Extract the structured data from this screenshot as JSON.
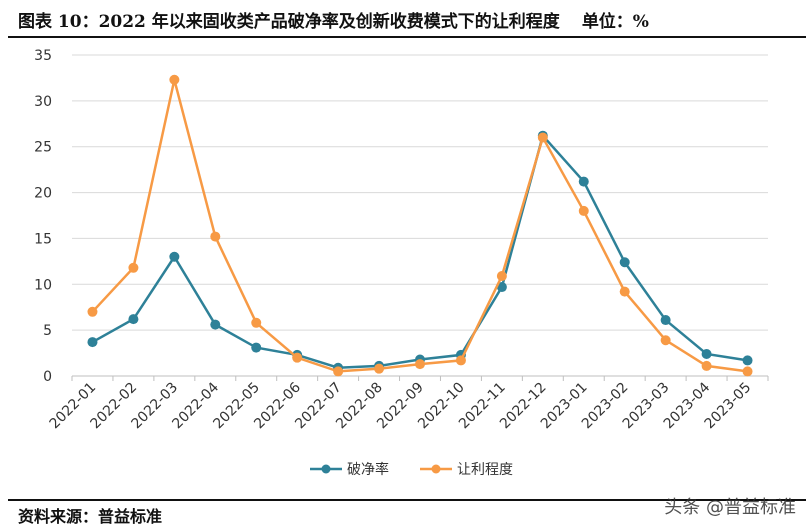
{
  "header": {
    "title": "图表 10：2022 年以来固收类产品破净率及创新收费模式下的让利程度",
    "unit": "单位：%"
  },
  "footer": {
    "source": "资料来源：普益标准",
    "watermark": "头条 @普益标准"
  },
  "colors": {
    "破净率": "#2e8198",
    "让利程度": "#f79a45",
    "grid": "#d9d9d9"
  },
  "chart_data": {
    "type": "line",
    "title": "",
    "xlabel": "",
    "ylabel": "",
    "ylim": [
      0,
      35
    ],
    "yticks": [
      0,
      5,
      10,
      15,
      20,
      25,
      30,
      35
    ],
    "grid": true,
    "legend": "bottom",
    "categories": [
      "2022-01",
      "2022-02",
      "2022-03",
      "2022-04",
      "2022-05",
      "2022-06",
      "2022-07",
      "2022-08",
      "2022-09",
      "2022-10",
      "2022-11",
      "2022-12",
      "2023-01",
      "2023-02",
      "2023-03",
      "2023-04",
      "2023-05"
    ],
    "series": [
      {
        "name": "破净率",
        "values": [
          3.7,
          6.2,
          13.0,
          5.6,
          3.1,
          2.3,
          0.9,
          1.1,
          1.8,
          2.3,
          9.7,
          26.2,
          21.2,
          12.4,
          6.1,
          2.4,
          1.7
        ]
      },
      {
        "name": "让利程度",
        "values": [
          7.0,
          11.8,
          32.3,
          15.2,
          5.8,
          2.0,
          0.5,
          0.8,
          1.3,
          1.7,
          10.9,
          26.0,
          18.0,
          9.2,
          3.9,
          1.1,
          0.5
        ]
      }
    ]
  }
}
